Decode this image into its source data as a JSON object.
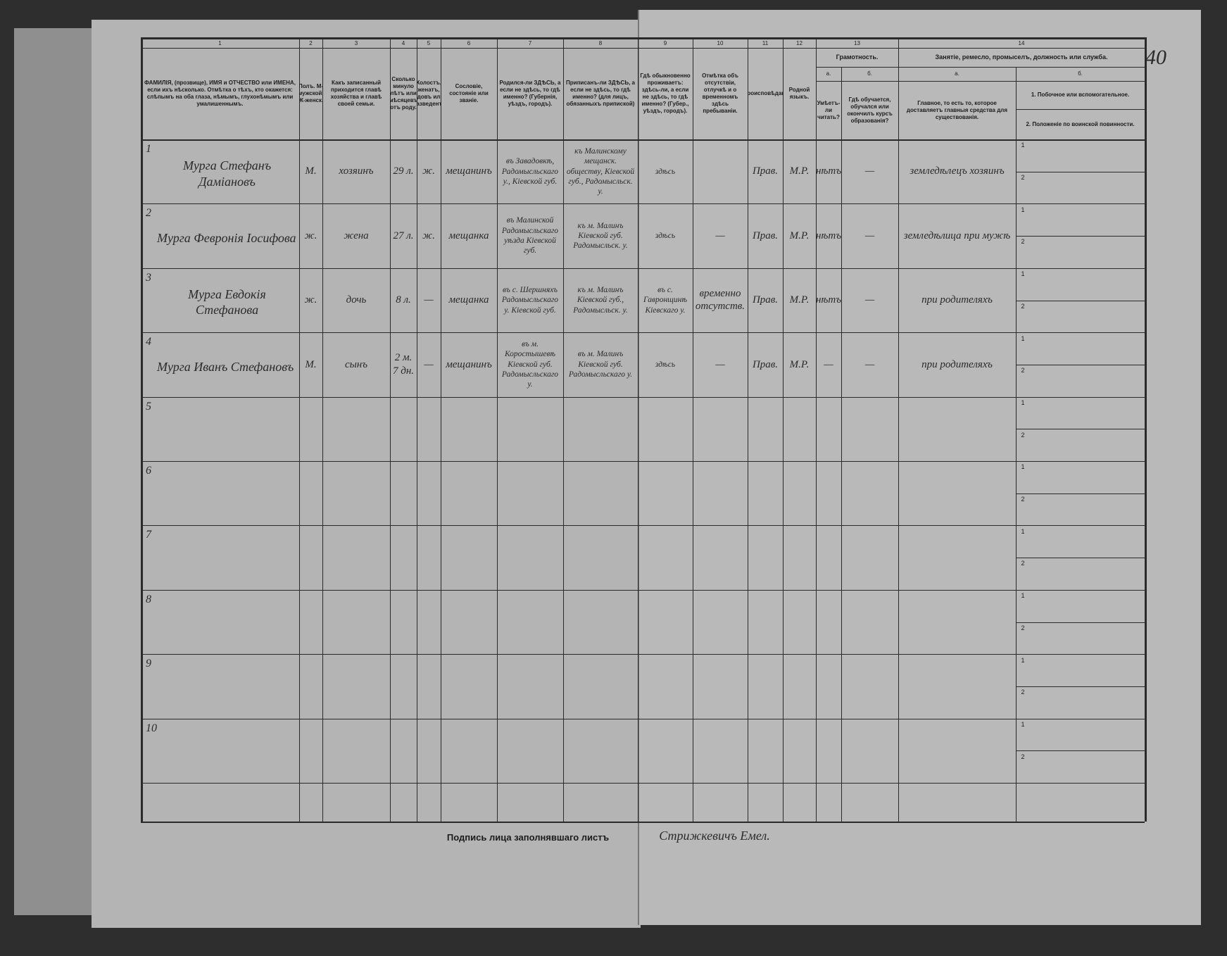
{
  "page_number": "40",
  "columns": [
    {
      "number": "1",
      "header": "ФАМИЛIЯ, (прозвище), ИМЯ и ОТЧЕСТВО или ИМЕНА, если ихъ нѣсколько. Отмѣтка о тѣхъ, кто окажется: слѣпымъ на оба глаза, нѣмымъ, глухонѣмымъ или умалишеннымъ."
    },
    {
      "number": "2",
      "header": "Полъ. М-мужской. Ж-женск."
    },
    {
      "number": "3",
      "header": "Какъ записанный приходится главѣ хозяйства и главѣ своей семьи."
    },
    {
      "number": "4",
      "header": "Сколько минуло лѣтъ или мѣсяцевъ отъ роду."
    },
    {
      "number": "5",
      "header": "Холостъ, женатъ, вдовъ или разведенъ."
    },
    {
      "number": "6",
      "header": "Сословiе, состоянiе или званiе."
    },
    {
      "number": "7",
      "header": "Родился-ли ЗДѢСЬ, а если не здѣсь, то гдѣ именно? (Губернiя, уѣздъ, городъ)."
    },
    {
      "number": "8",
      "header": "Приписанъ-ли ЗДѢСЬ, а если не здѣсь, то гдѣ именно? (для лицъ, обязанныхъ припиской)"
    },
    {
      "number": "9",
      "header": "Гдѣ обыкновенно проживаетъ: здѣсь-ли, а если не здѣсь, то гдѣ именно? (Губер., уѣздъ, городъ)."
    },
    {
      "number": "10",
      "header": "Отмѣтка объ отсутствiи, отлучкѣ и о временномъ здѣсь пребыванiи."
    },
    {
      "number": "11",
      "header": "Вѣроисповѣданiе."
    },
    {
      "number": "12",
      "header": "Родной языкъ."
    },
    {
      "number": "13",
      "header": "Грамотность.",
      "subcolumns": [
        {
          "letter": "а.",
          "header": "Умѣетъ-ли читать?"
        },
        {
          "letter": "б.",
          "header": "Гдѣ обучается, обучался или окончилъ курсъ образованiя?"
        }
      ]
    },
    {
      "number": "14",
      "header": "Занятiе, ремесло, промыселъ, должность или служба.",
      "subcolumns": [
        {
          "letter": "а.",
          "header": "Главное, то есть то, которое доставляетъ главныя средства для существованiя."
        },
        {
          "letter": "б.",
          "header": "1. Побочное или вспомогательное.",
          "header2": "2. Положенiе по воинской повинности."
        }
      ]
    }
  ],
  "sub_labels": [
    "1",
    "2"
  ],
  "rows": [
    {
      "number": "1",
      "cells": {
        "name": "Мурга Стефанъ Дамiановъ",
        "sex": "М.",
        "relation": "хозяинъ",
        "age": "29 л.",
        "marital": "ж.",
        "estate": "мещанинъ",
        "birthplace": "въ Завадовкѣ, Радомысльскаго у., Кiевской губ.",
        "registered": "къ Малинскому мещанск. обществу, Кiевской губ., Радомысльск. у.",
        "residence": "здѣсь",
        "religion": "Прав.",
        "language": "М.Р.",
        "literacy": "нѣтъ",
        "education": "—",
        "occupation": "земледѣлецъ хозяинъ"
      }
    },
    {
      "number": "2",
      "cells": {
        "name": "Мурга Февронiя Iосифова",
        "sex": "ж.",
        "relation": "жена",
        "age": "27 л.",
        "marital": "ж.",
        "estate": "мещанка",
        "birthplace": "въ Малинской Радомысльскаго уѣзда Кiевской губ.",
        "registered": "къ м. Малинъ Кiевской губ. Радомысльск. у.",
        "residence": "здѣсь",
        "absence": "—",
        "religion": "Прав.",
        "language": "М.Р.",
        "literacy": "нѣтъ",
        "education": "—",
        "occupation": "земледѣлица при мужѣ"
      }
    },
    {
      "number": "3",
      "cells": {
        "name": "Мурга Евдокiя Стефанова",
        "sex": "ж.",
        "relation": "дочь",
        "age": "8 л.",
        "marital": "—",
        "estate": "мещанка",
        "birthplace": "въ с. Шершняхъ Радомысльскаго у. Кiевской губ.",
        "registered": "къ м. Малинъ Кiевской губ., Радомысльск. у.",
        "residence": "въ с. Гавронщинѣ Кiевскаго у.",
        "absence": "временно отсутств.",
        "religion": "Прав.",
        "language": "М.Р.",
        "literacy": "нѣтъ",
        "education": "—",
        "occupation": "при родителяхъ"
      }
    },
    {
      "number": "4",
      "cells": {
        "name": "Мурга Иванъ Стефановъ",
        "sex": "М.",
        "relation": "сынъ",
        "age": "2 м. 7 дн.",
        "marital": "—",
        "estate": "мещанинъ",
        "birthplace": "въ м. Коростышевѣ Кiевской губ. Радомысльскаго у.",
        "registered": "въ м. Малинъ Кiевской губ. Радомысльскаго у.",
        "residence": "здѣсь",
        "absence": "—",
        "religion": "Прав.",
        "language": "М.Р.",
        "literacy": "—",
        "education": "—",
        "occupation": "при родителяхъ"
      }
    },
    {
      "number": "5",
      "cells": {}
    },
    {
      "number": "6",
      "cells": {}
    },
    {
      "number": "7",
      "cells": {}
    },
    {
      "number": "8",
      "cells": {}
    },
    {
      "number": "9",
      "cells": {}
    },
    {
      "number": "10",
      "cells": {}
    }
  ],
  "footer": {
    "label": "Подпись лица заполнявшаго листъ",
    "signature": "Стрижкевичъ Емел."
  }
}
